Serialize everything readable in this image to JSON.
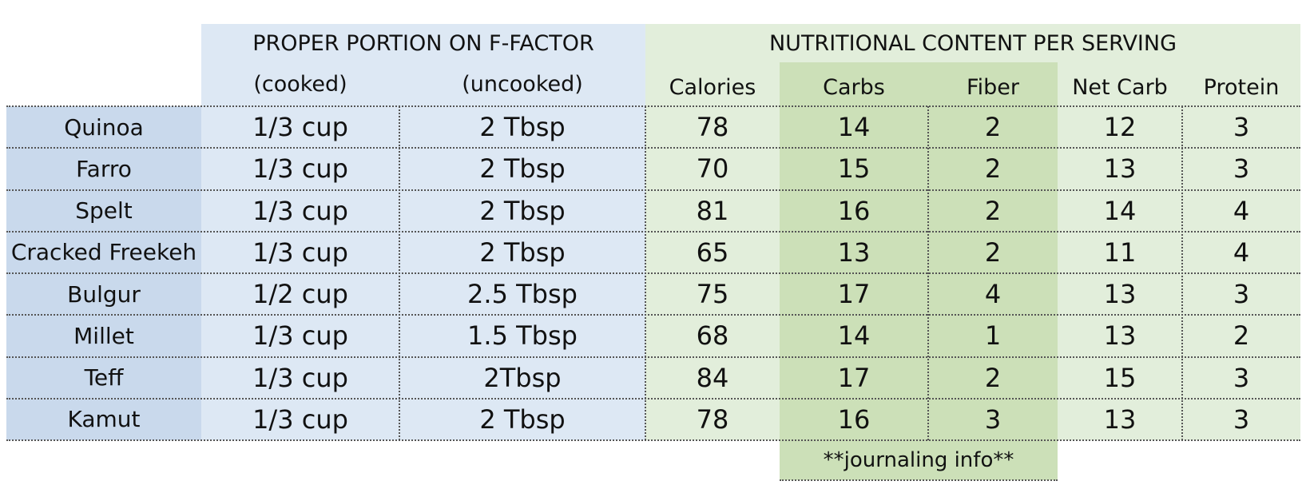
{
  "headers": {
    "portion_group": "PROPER PORTION ON F-FACTOR",
    "nutrition_group": "NUTRITIONAL CONTENT PER SERVING",
    "cooked": "(cooked)",
    "uncooked": "(uncooked)",
    "calories": "Calories",
    "carbs": "Carbs",
    "fiber": "Fiber",
    "net_carb": "Net Carb",
    "protein": "Protein"
  },
  "rows": [
    {
      "name": "Quinoa",
      "cooked": "1/3 cup",
      "uncooked": "2 Tbsp",
      "calories": "78",
      "carbs": "14",
      "fiber": "2",
      "net_carb": "12",
      "protein": "3"
    },
    {
      "name": "Farro",
      "cooked": "1/3 cup",
      "uncooked": "2 Tbsp",
      "calories": "70",
      "carbs": "15",
      "fiber": "2",
      "net_carb": "13",
      "protein": "3"
    },
    {
      "name": "Spelt",
      "cooked": "1/3 cup",
      "uncooked": "2 Tbsp",
      "calories": "81",
      "carbs": "16",
      "fiber": "2",
      "net_carb": "14",
      "protein": "4"
    },
    {
      "name": "Cracked Freekeh",
      "cooked": "1/3 cup",
      "uncooked": "2 Tbsp",
      "calories": "65",
      "carbs": "13",
      "fiber": "2",
      "net_carb": "11",
      "protein": "4"
    },
    {
      "name": "Bulgur",
      "cooked": "1/2 cup",
      "uncooked": "2.5 Tbsp",
      "calories": "75",
      "carbs": "17",
      "fiber": "4",
      "net_carb": "13",
      "protein": "3"
    },
    {
      "name": "Millet",
      "cooked": "1/3 cup",
      "uncooked": "1.5 Tbsp",
      "calories": "68",
      "carbs": "14",
      "fiber": "1",
      "net_carb": "13",
      "protein": "2"
    },
    {
      "name": "Teff",
      "cooked": "1/3 cup",
      "uncooked": "2Tbsp",
      "calories": "84",
      "carbs": "17",
      "fiber": "2",
      "net_carb": "15",
      "protein": "3"
    },
    {
      "name": "Kamut",
      "cooked": "1/3 cup",
      "uncooked": "2 Tbsp",
      "calories": "78",
      "carbs": "16",
      "fiber": "3",
      "net_carb": "13",
      "protein": "3"
    }
  ],
  "footnote": "**journaling info**",
  "colors": {
    "label_column": "#c9d9ec",
    "portion_section": "#dde8f4",
    "nutrition_section": "#e2eedb",
    "carbs_fiber_highlight": "#cce0b8"
  }
}
